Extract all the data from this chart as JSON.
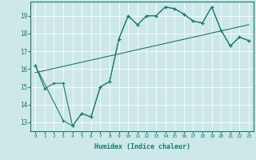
{
  "xlabel": "Humidex (Indice chaleur)",
  "bg_color": "#cce8e8",
  "grid_color": "#ffffff",
  "line_color": "#1a7a6e",
  "xlim": [
    -0.5,
    23.5
  ],
  "ylim": [
    12.5,
    19.8
  ],
  "xticks": [
    0,
    1,
    2,
    3,
    4,
    5,
    6,
    7,
    8,
    9,
    10,
    11,
    12,
    13,
    14,
    15,
    16,
    17,
    18,
    19,
    20,
    21,
    22,
    23
  ],
  "yticks": [
    13,
    14,
    15,
    16,
    17,
    18,
    19
  ],
  "line1_x": [
    0,
    1,
    2,
    3,
    4,
    5,
    6,
    7,
    8,
    9,
    10,
    11,
    12,
    13,
    14,
    15,
    16,
    17,
    18,
    19,
    20,
    21,
    22,
    23
  ],
  "line1_y": [
    16.2,
    14.9,
    15.2,
    15.2,
    12.8,
    13.5,
    13.3,
    15.0,
    15.3,
    17.7,
    19.0,
    18.5,
    19.0,
    19.0,
    19.5,
    19.4,
    19.1,
    18.7,
    18.6,
    19.5,
    18.2,
    17.3,
    17.8,
    17.6
  ],
  "line2_x": [
    0,
    3,
    4,
    5,
    6,
    7,
    8,
    9,
    10,
    11,
    12,
    13,
    14,
    15,
    16,
    17,
    18,
    19,
    20,
    21,
    22,
    23
  ],
  "line2_y": [
    16.2,
    13.1,
    12.8,
    13.5,
    13.3,
    15.0,
    15.3,
    17.7,
    19.0,
    18.5,
    19.0,
    19.0,
    19.5,
    19.4,
    19.1,
    18.7,
    18.6,
    19.5,
    18.2,
    17.3,
    17.8,
    17.6
  ],
  "line3_x": [
    0,
    23
  ],
  "line3_y": [
    15.8,
    18.5
  ]
}
